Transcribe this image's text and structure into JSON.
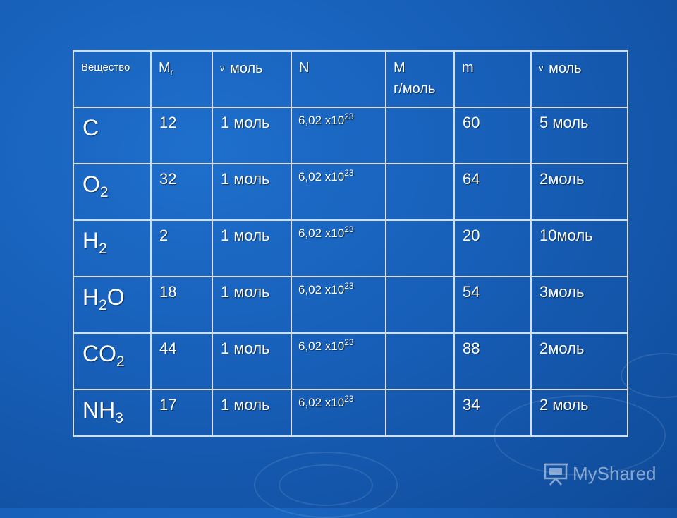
{
  "table": {
    "headers": [
      {
        "main": "Вещество",
        "sub": ""
      },
      {
        "main": "M",
        "sub": "r"
      },
      {
        "main": "моль",
        "prefix": "ν"
      },
      {
        "main": "N"
      },
      {
        "main": "M",
        "line2": "г/моль"
      },
      {
        "main": "m"
      },
      {
        "main": "моль",
        "prefix": "ν"
      }
    ],
    "rows": [
      {
        "formula": [
          {
            "t": "C"
          }
        ],
        "mr": "12",
        "nu1": "1 моль",
        "n_base": "6,02 x10",
        "n_exp": "23",
        "molar": "",
        "m": "60",
        "nu2": "5 моль"
      },
      {
        "formula": [
          {
            "t": "O"
          },
          {
            "sub": "2"
          }
        ],
        "mr": "32",
        "nu1": "1 моль",
        "n_base": "6,02 x10",
        "n_exp": "23",
        "molar": "",
        "m": "64",
        "nu2": "2моль"
      },
      {
        "formula": [
          {
            "t": "H"
          },
          {
            "sub": "2"
          }
        ],
        "mr": "2",
        "nu1": "1 моль",
        "n_base": "6,02 x10",
        "n_exp": "23",
        "molar": "",
        "m": "20",
        "nu2": "10моль"
      },
      {
        "formula": [
          {
            "t": "H"
          },
          {
            "sub": "2"
          },
          {
            "t": "O"
          }
        ],
        "mr": "18",
        "nu1": "1 моль",
        "n_base": "6,02 x10",
        "n_exp": "23",
        "molar": "",
        "m": "54",
        "nu2": "3моль"
      },
      {
        "formula": [
          {
            "t": "CO"
          },
          {
            "sub": "2"
          }
        ],
        "mr": "44",
        "nu1": "1 моль",
        "n_base": "6,02 x10",
        "n_exp": "23",
        "molar": "",
        "m": "88",
        "nu2": "2моль"
      },
      {
        "formula": [
          {
            "t": "NH"
          },
          {
            "sub": "3"
          }
        ],
        "mr": "17",
        "nu1": "1 моль",
        "n_base": "6,02 x10",
        "n_exp": "23",
        "molar": "",
        "m": "34",
        "nu2": "2 моль"
      }
    ]
  },
  "watermark": {
    "text": "MyShared",
    "icon": "presentation-board-icon"
  }
}
